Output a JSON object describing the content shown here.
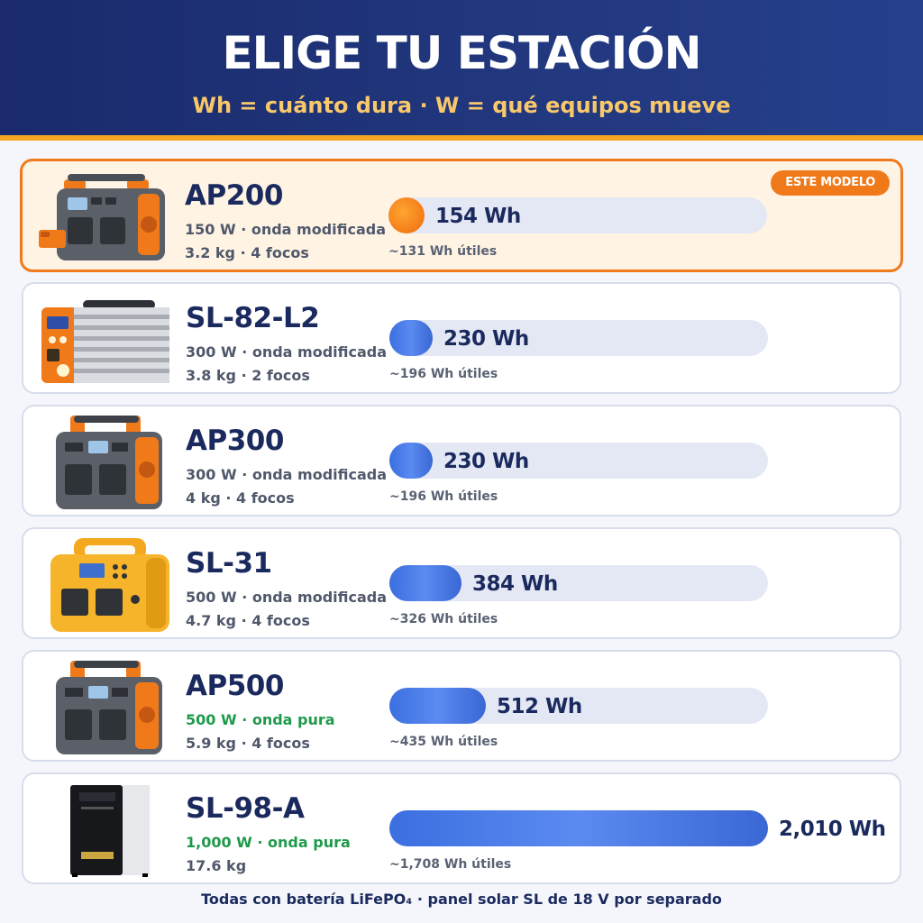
{
  "header": {
    "title": "ELIGE TU ESTACIÓN",
    "subtitle": "Wh = cuánto dura · W = qué equipos mueve"
  },
  "badge": "ESTE MODELO",
  "colors": {
    "header_bg": "#1a2a6c",
    "accent_orange": "#f07a1a",
    "bar_blue": "#3b6fe0",
    "pure_wave_green": "#1f9a4b",
    "name_navy": "#1b2a5e"
  },
  "bar_max_wh": 2010,
  "models": [
    {
      "name": "AP200",
      "spec1": "150 W · onda modificada",
      "spec2": "3.2 kg · 4 focos",
      "capacity_wh": 154,
      "wh_label": "154 Wh",
      "useful": "~131 Wh útiles",
      "highlight": true,
      "pure_wave": false,
      "image": "orange-gray-power-station-icon"
    },
    {
      "name": "SL-82-L2",
      "spec1": "300 W · onda modificada",
      "spec2": "3.8 kg · 2 focos",
      "capacity_wh": 230,
      "wh_label": "230 Wh",
      "useful": "~196 Wh útiles",
      "highlight": false,
      "pure_wave": false,
      "image": "silver-finned-power-station-icon"
    },
    {
      "name": "AP300",
      "spec1": "300 W · onda modificada",
      "spec2": "4 kg · 4 focos",
      "capacity_wh": 230,
      "wh_label": "230 Wh",
      "useful": "~196 Wh útiles",
      "highlight": false,
      "pure_wave": false,
      "image": "gray-orange-power-station-icon"
    },
    {
      "name": "SL-31",
      "spec1": "500 W · onda modificada",
      "spec2": "4.7 kg · 4 focos",
      "capacity_wh": 384,
      "wh_label": "384 Wh",
      "useful": "~326 Wh útiles",
      "highlight": false,
      "pure_wave": false,
      "image": "yellow-power-station-icon"
    },
    {
      "name": "AP500",
      "spec1": "500 W · onda pura",
      "spec2": "5.9 kg · 4 focos",
      "capacity_wh": 512,
      "wh_label": "512 Wh",
      "useful": "~435 Wh útiles",
      "highlight": false,
      "pure_wave": true,
      "image": "gray-orange-power-station-icon"
    },
    {
      "name": "SL-98-A",
      "spec1": "1,000 W · onda pura",
      "spec2": "17.6 kg",
      "capacity_wh": 2010,
      "wh_label": "2,010 Wh",
      "useful": "~1,708 Wh útiles",
      "highlight": false,
      "pure_wave": true,
      "image": "white-black-tower-station-icon"
    }
  ],
  "footer": "Todas con batería LiFePO₄ · panel solar SL de 18 V por separado"
}
